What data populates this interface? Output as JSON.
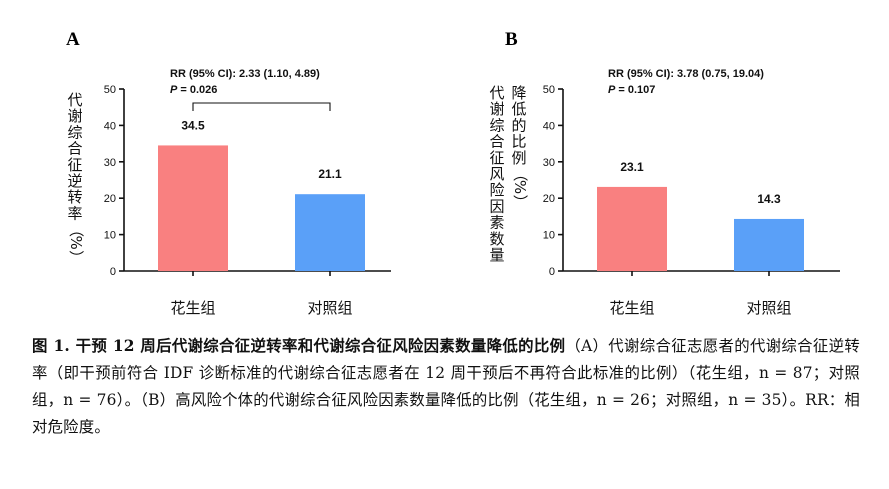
{
  "figure": {
    "panels": [
      {
        "label": "A",
        "ylabel": "代谢综合征逆转率（%）",
        "ylabel_lines": [
          "代谢综合征逆转率（%）"
        ],
        "stat_line1": "RR (95% CI): 2.33 (1.10, 4.89)",
        "stat_p_label": "P",
        "stat_p_value": " = 0.026"
      },
      {
        "label": "B",
        "ylabel": "代谢综合征风险因素数量降低的比例（%）",
        "ylabel_lines": [
          "代谢综合征风险因素数量",
          "降低的比例（%）"
        ],
        "stat_line1": "RR (95% CI): 3.78 (0.75, 19.04)",
        "stat_p_label": "P",
        "stat_p_value": " = 0.107"
      }
    ]
  },
  "chart_data": [
    {
      "type": "bar",
      "title": "A",
      "categories": [
        "花生组",
        "对照组"
      ],
      "values": [
        34.5,
        21.1
      ],
      "value_labels": [
        "34.5",
        "21.1"
      ],
      "colors": [
        "#f98080",
        "#5aa0f8"
      ],
      "ylabel": "代谢综合征逆转率（%）",
      "xlabel": "",
      "ylim": [
        0,
        50
      ],
      "yticks": [
        0,
        10,
        20,
        30,
        40,
        50
      ],
      "annotation": "RR (95% CI): 2.33 (1.10, 4.89); P = 0.026",
      "significance_bracket": true
    },
    {
      "type": "bar",
      "title": "B",
      "categories": [
        "花生组",
        "对照组"
      ],
      "values": [
        23.1,
        14.3
      ],
      "value_labels": [
        "23.1",
        "14.3"
      ],
      "colors": [
        "#f98080",
        "#5aa0f8"
      ],
      "ylabel": "代谢综合征风险因素数量降低的比例（%）",
      "xlabel": "",
      "ylim": [
        0,
        50
      ],
      "yticks": [
        0,
        10,
        20,
        30,
        40,
        50
      ],
      "annotation": "RR (95% CI): 3.78 (0.75, 19.04); P = 0.107",
      "significance_bracket": false
    }
  ],
  "caption": {
    "head": "图 1. 干预 12 周后代谢综合征逆转率和代谢综合征风险因素数量降低的比例",
    "body": "（A）代谢综合征志愿者的代谢综合征逆转率（即干预前符合 IDF 诊断标准的代谢综合征志愿者在 12 周干预后不再符合此标准的比例）（花生组，n = 87；对照组，n = 76）。（B）高风险个体的代谢综合征风险因素数量降低的比例（花生组，n = 26；对照组，n = 35）。RR：相对危险度。"
  }
}
